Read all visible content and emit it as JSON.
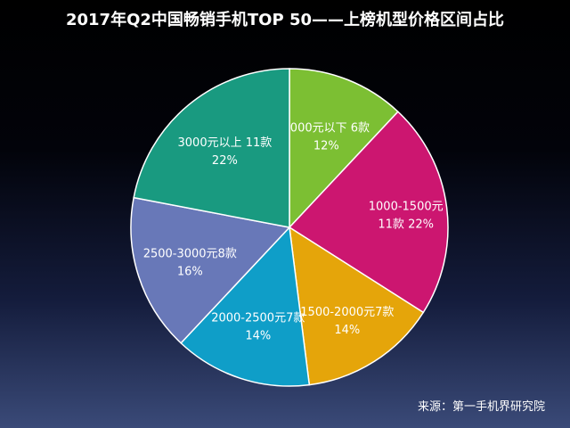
{
  "chart_data": {
    "type": "pie",
    "title": "2017年Q2中国畅销手机TOP 50——上榜机型价格区间占比",
    "slices": [
      {
        "label_line1": "1000元以下 6款",
        "label_line2": "12%",
        "value": 12,
        "color": "#7cbf33"
      },
      {
        "label_line1": "1000-1500元",
        "label_line2": "11款  22%",
        "value": 22,
        "color": "#cc1670"
      },
      {
        "label_line1": "1500-2000元7款",
        "label_line2": "14%",
        "value": 14,
        "color": "#e5a50a"
      },
      {
        "label_line1": "2000-2500元7款",
        "label_line2": "14%",
        "value": 14,
        "color": "#0f9ec8"
      },
      {
        "label_line1": "2500-3000元8款",
        "label_line2": "16%",
        "value": 16,
        "color": "#6878b8"
      },
      {
        "label_line1": "3000元以上 11款",
        "label_line2": "22%",
        "value": 22,
        "color": "#199a80"
      }
    ]
  },
  "source": "来源：第一手机界研究院"
}
